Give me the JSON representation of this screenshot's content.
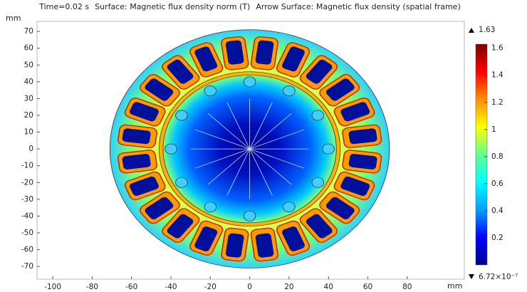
{
  "chart_data": {
    "type": "field",
    "title_parts": [
      "Time=0.02 s",
      "Surface: Magnetic flux density norm (T)",
      "Arrow Surface: Magnetic flux density (spatial frame)"
    ],
    "x_unit": "mm",
    "y_unit": "mm",
    "xlim": [
      -108,
      109
    ],
    "ylim": [
      -77.6,
      76
    ],
    "xticks": [
      -100,
      -80,
      -60,
      -40,
      -20,
      0,
      20,
      40,
      60,
      80
    ],
    "yticks": [
      -70,
      -60,
      -50,
      -40,
      -30,
      -20,
      -10,
      0,
      10,
      20,
      30,
      40,
      50,
      60,
      70
    ],
    "colorbar": {
      "colors": [
        "#00008f",
        "#0000ff",
        "#00a0ff",
        "#00ffff",
        "#60ff90",
        "#ffff00",
        "#ff9000",
        "#ff0000",
        "#800000"
      ],
      "clim": [
        6.72e-07,
        1.63
      ],
      "ticks": [
        0.2,
        0.4,
        0.6,
        0.8,
        1,
        1.2,
        1.4,
        1.6
      ],
      "max": {
        "value": 1.63,
        "label": "1.63"
      },
      "min": {
        "value": 6.72e-07,
        "label": "6.72×10⁻⁷"
      }
    }
  }
}
